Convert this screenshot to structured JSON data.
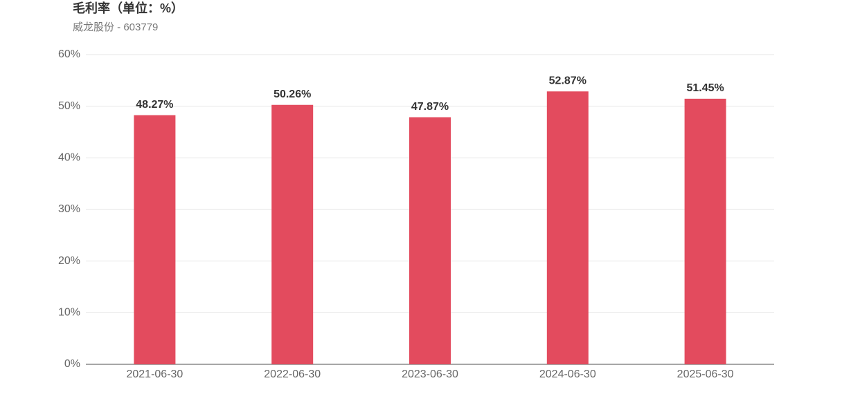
{
  "chart_data": {
    "type": "bar",
    "title": "毛利率（单位：%）",
    "subtitle": "威龙股份 - 603779",
    "categories": [
      "2021-06-30",
      "2022-06-30",
      "2023-06-30",
      "2024-06-30",
      "2025-06-30"
    ],
    "values": [
      48.27,
      50.26,
      47.87,
      52.87,
      51.45
    ],
    "value_labels": [
      "48.27%",
      "50.26%",
      "47.87%",
      "52.87%",
      "51.45%"
    ],
    "color": "#e34b5e",
    "ylim": [
      0,
      60
    ],
    "yticks": [
      {
        "value": 0,
        "label": "0%"
      },
      {
        "value": 10,
        "label": "10%"
      },
      {
        "value": 20,
        "label": "20%"
      },
      {
        "value": 30,
        "label": "30%"
      },
      {
        "value": 40,
        "label": "40%"
      },
      {
        "value": 50,
        "label": "50%"
      },
      {
        "value": 60,
        "label": "60%"
      }
    ],
    "grid": true
  }
}
